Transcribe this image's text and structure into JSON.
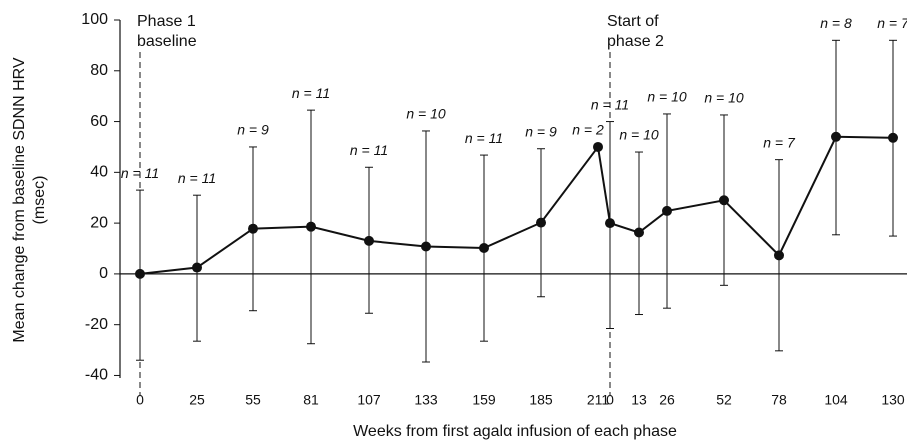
{
  "chart_data": {
    "type": "line",
    "y_label": [
      "Mean change from baseline SDNN HRV",
      "(msec)"
    ],
    "x_label": "Weeks from first agalα infusion of each phase",
    "annotations": [
      [
        "Phase 1",
        "baseline"
      ],
      [
        "Start of",
        "phase 2"
      ]
    ],
    "categories": [
      "0",
      "25",
      "55",
      "81",
      "107",
      "133",
      "159",
      "185",
      "211",
      "0",
      "13",
      "26",
      "52",
      "78",
      "104",
      "130"
    ],
    "series": [
      {
        "color": "#111111",
        "values": [
          0,
          2.5,
          17.8,
          18.6,
          13,
          10.8,
          10.2,
          20.2,
          50,
          20,
          16.3,
          24.8,
          29,
          7.3,
          54,
          53.6
        ],
        "upper": [
          33,
          31,
          50,
          64.5,
          42,
          56.3,
          46.8,
          49.3,
          null,
          60,
          48,
          63,
          62.6,
          45,
          92,
          92
        ],
        "lower": [
          -34,
          -26.5,
          -14.5,
          -27.5,
          -15.5,
          -34.7,
          -26.5,
          -9,
          null,
          -21.5,
          -16,
          -13.5,
          -4.5,
          -30.3,
          15.4,
          14.9
        ],
        "value_labels": [
          "n = 11",
          "n = 11",
          "n = 9",
          "n = 11",
          "n = 11",
          "n = 10",
          "n = 11",
          "n = 9",
          "n = 2",
          "n = 11",
          "n = 10",
          "n = 10",
          "n = 10",
          "n = 7",
          "n = 8",
          "n = 7"
        ]
      }
    ],
    "ylim": [
      -41,
      100
    ],
    "yticks": [
      -40,
      -20,
      0,
      20,
      40,
      60,
      80,
      100
    ],
    "zero_line": true
  }
}
